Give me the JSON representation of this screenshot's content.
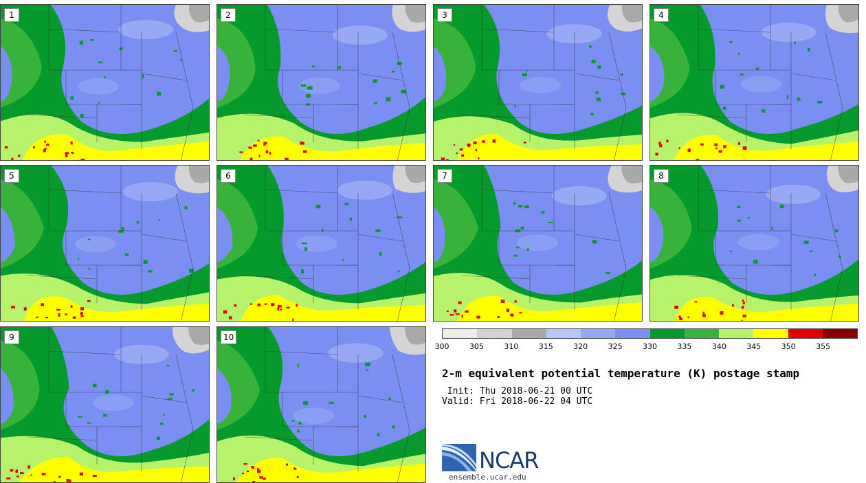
{
  "panels": [
    {
      "label": "1",
      "variant": 0
    },
    {
      "label": "2",
      "variant": 1
    },
    {
      "label": "3",
      "variant": 2
    },
    {
      "label": "4",
      "variant": 3
    },
    {
      "label": "5",
      "variant": 4
    },
    {
      "label": "6",
      "variant": 5
    },
    {
      "label": "7",
      "variant": 6
    },
    {
      "label": "8",
      "variant": 7
    },
    {
      "label": "9",
      "variant": 8
    },
    {
      "label": "10",
      "variant": 9
    }
  ],
  "colorbar": {
    "colors": [
      "#ececec",
      "#d4d4d4",
      "#a9a9a9",
      "#b8c6f6",
      "#97a9f4",
      "#7b8ef2",
      "#069a2c",
      "#38b23a",
      "#b6f26a",
      "#ffff00",
      "#e10000",
      "#890000"
    ],
    "tick_labels": [
      "300",
      "305",
      "310",
      "315",
      "320",
      "325",
      "330",
      "335",
      "340",
      "345",
      "350",
      "355"
    ]
  },
  "title": "2-m equivalent potential temperature (K) postage stamp",
  "init_line": " Init: Thu 2018-06-21 00 UTC",
  "valid_line": "Valid: Fri 2018-06-22 04 UTC",
  "logo": {
    "name": "NCAR",
    "url": "ensemble.ucar.edu"
  }
}
